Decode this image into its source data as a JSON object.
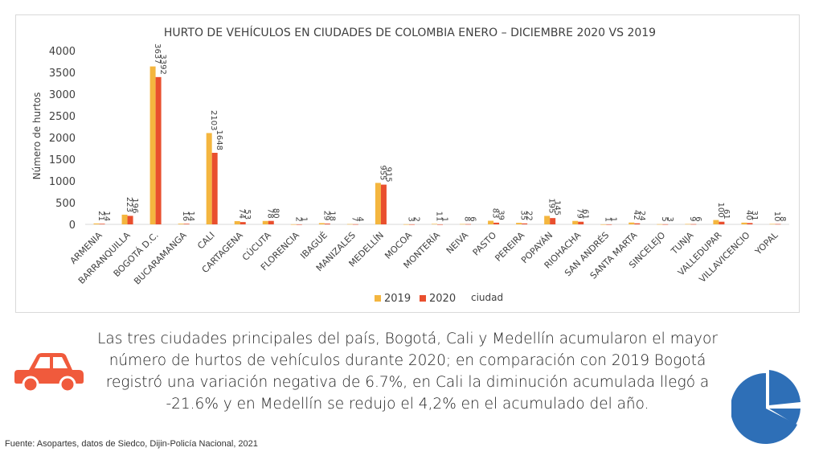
{
  "chart_data": {
    "type": "bar",
    "title": "HURTO DE VEHÍCULOS EN CIUDADES DE COLOMBIA ENERO – DICIEMBRE 2020 VS 2019",
    "ylabel": "Número de hurtos",
    "xlabel": "ciudad",
    "ylim": [
      0,
      4000
    ],
    "yticks": [
      0,
      500,
      1000,
      1500,
      2000,
      2500,
      3000,
      3500,
      4000
    ],
    "grid": false,
    "legend_position": "bottom",
    "categories": [
      "ARMENIA",
      "BARRANQUILLA",
      "BOGOTÁ D.C.",
      "BUCARAMANGA",
      "CALI",
      "CARTAGENA",
      "CÚCUTA",
      "FLORENCIA",
      "IBAGUÉ",
      "MANIZALES",
      "MEDELLÍN",
      "MOCOA",
      "MONTERÍA",
      "NEIVA",
      "PASTO",
      "PEREIRA",
      "POPAYÁN",
      "RIOHACHA",
      "SAN ANDRÉS",
      "SANTA MARTA",
      "SINCELEJO",
      "TUNJA",
      "VALLEDUPAR",
      "VILLAVICENCIO",
      "YOPAL"
    ],
    "series": [
      {
        "name": "2019",
        "color": "#f4b63f",
        "values": [
          21,
          223,
          3637,
          16,
          2103,
          74,
          78,
          2,
          29,
          7,
          955,
          3,
          11,
          8,
          83,
          35,
          195,
          79,
          1,
          42,
          5,
          9,
          100,
          40,
          10
        ]
      },
      {
        "name": "2020",
        "color": "#e94f2e",
        "values": [
          14,
          196,
          3392,
          14,
          1648,
          53,
          80,
          1,
          18,
          4,
          915,
          2,
          1,
          6,
          39,
          22,
          145,
          61,
          1,
          24,
          3,
          6,
          61,
          31,
          8
        ]
      }
    ]
  },
  "body_text": "Las tres ciudades principales del país, Bogotá, Cali y Medellín acumularon el mayor número de hurtos de vehículos durante 2020; en comparación con 2019 Bogotá registró una variación negativa de 6.7%, en Cali la diminución acumulada llegó a -21.6% y en Medellín se redujo el 4,2% en el acumulado del año.",
  "footer": "Fuente: Asopartes, datos de Siedco, Dijin-Policía Nacional, 2021",
  "icons": {
    "car": "car-icon",
    "pie": "pie-chart-icon",
    "accent_red": "#f05a3c",
    "accent_blue": "#2e6fb7"
  }
}
